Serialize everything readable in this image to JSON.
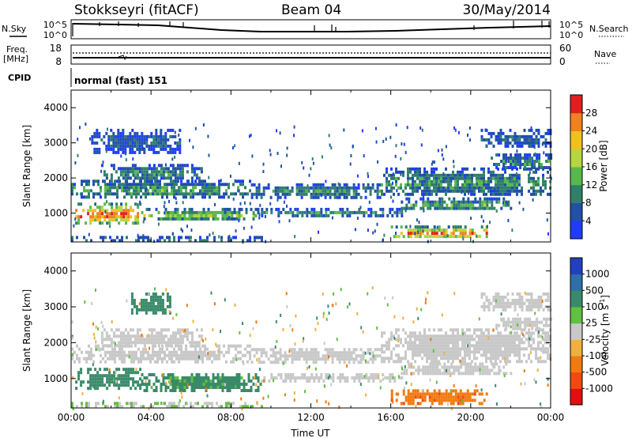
{
  "header": {
    "station": "Stokkseyri (fitACF)",
    "beam": "Beam 04",
    "date": "30/May/2014"
  },
  "top_panels": {
    "nsky_label": "N.Sky",
    "nsky_ticks": [
      "10^5",
      "10^0"
    ],
    "nsearch_label": "N.Search",
    "nsearch_ticks": [
      "10^5",
      "10^0"
    ],
    "freq_label": "Freq.",
    "freq_unit": "[MHz]",
    "freq_ticks": [
      "18",
      "8"
    ],
    "nave_label": "Nave",
    "nave_ticks": [
      "60",
      "0"
    ],
    "cpid_label": "CPID",
    "cpid_value": "normal (fast) 151"
  },
  "chart_data": [
    {
      "type": "heatmap",
      "name": "power",
      "ylabel": "Slant Range [km]",
      "xlabel": "",
      "ylim": [
        180,
        4500
      ],
      "yticks": [
        "1000",
        "2000",
        "3000",
        "4000"
      ],
      "xticks": [
        "00:00",
        "04:00",
        "08:00",
        "12:00",
        "16:00",
        "20:00",
        "00:00"
      ],
      "colorbar": {
        "label": "Power [dB]",
        "ticks": [
          "4",
          "8",
          "12",
          "16",
          "20",
          "24",
          "28"
        ],
        "colors": [
          "#1f3bff",
          "#2050a8",
          "#2f7f6a",
          "#58b84b",
          "#b5d640",
          "#f0c020",
          "#f08020",
          "#e02020"
        ]
      },
      "bands": [
        {
          "t0": 0.0,
          "t1": 9.5,
          "r0": 250,
          "r1": 350,
          "v": 12
        },
        {
          "t0": 0.2,
          "t1": 3.5,
          "r0": 700,
          "r1": 1300,
          "v": 24
        },
        {
          "t0": 3.5,
          "t1": 9.5,
          "r0": 800,
          "r1": 1150,
          "v": 14
        },
        {
          "t0": 0.0,
          "t1": 9.0,
          "r0": 1450,
          "r1": 1950,
          "v": 11
        },
        {
          "t0": 1.5,
          "t1": 6.5,
          "r0": 1900,
          "r1": 2400,
          "v": 9
        },
        {
          "t0": 1.0,
          "t1": 5.5,
          "r0": 2700,
          "r1": 3400,
          "v": 6
        },
        {
          "t0": 9.0,
          "t1": 15.5,
          "r0": 1450,
          "r1": 1850,
          "v": 9
        },
        {
          "t0": 9.5,
          "t1": 16.5,
          "r0": 950,
          "r1": 1150,
          "v": 10
        },
        {
          "t0": 16.0,
          "t1": 20.8,
          "r0": 300,
          "r1": 650,
          "v": 22
        },
        {
          "t0": 16.5,
          "t1": 22.0,
          "r0": 1100,
          "r1": 1450,
          "v": 11
        },
        {
          "t0": 15.5,
          "t1": 24.0,
          "r0": 1500,
          "r1": 2300,
          "v": 10
        },
        {
          "t0": 21.0,
          "t1": 24.0,
          "r0": 2300,
          "r1": 2700,
          "v": 9
        },
        {
          "t0": 20.5,
          "t1": 24.0,
          "r0": 2900,
          "r1": 3400,
          "v": 6
        }
      ]
    },
    {
      "type": "heatmap",
      "name": "velocity",
      "ylabel": "Slant Range [km]",
      "xlabel": "Time UT",
      "ylim": [
        180,
        4500
      ],
      "yticks": [
        "1000",
        "2000",
        "3000",
        "4000"
      ],
      "xticks": [
        "00:00",
        "04:00",
        "08:00",
        "12:00",
        "16:00",
        "20:00",
        "00:00"
      ],
      "colorbar": {
        "label": "Velocity [m s",
        "label_sup": "-1",
        "label_end": "]",
        "ticks": [
          "1000",
          "500",
          "100",
          "25",
          "-25",
          "-100",
          "-500",
          "-1000"
        ],
        "colors": [
          "#2040c0",
          "#2f6fa8",
          "#3a8a6a",
          "#60c040",
          "#c8c8c8",
          "#f0b040",
          "#f07a10",
          "#f04a10",
          "#e01010"
        ]
      },
      "bands": [
        {
          "t0": 0.0,
          "t1": 9.5,
          "r0": 250,
          "r1": 350,
          "v": 25
        },
        {
          "t0": 0.2,
          "t1": 3.5,
          "r0": 700,
          "r1": 1300,
          "v": 300
        },
        {
          "t0": 3.5,
          "t1": 9.5,
          "r0": 700,
          "r1": 1150,
          "v": 150
        },
        {
          "t0": 0.0,
          "t1": 9.0,
          "r0": 1450,
          "r1": 1950,
          "v": 0
        },
        {
          "t0": 1.5,
          "t1": 6.5,
          "r0": 1900,
          "r1": 2400,
          "v": 0
        },
        {
          "t0": 3.0,
          "t1": 5.0,
          "r0": 2800,
          "r1": 3400,
          "v": 200
        },
        {
          "t0": 9.0,
          "t1": 15.5,
          "r0": 1450,
          "r1": 1850,
          "v": 0
        },
        {
          "t0": 9.5,
          "t1": 16.5,
          "r0": 950,
          "r1": 1150,
          "v": 0
        },
        {
          "t0": 16.0,
          "t1": 20.8,
          "r0": 300,
          "r1": 700,
          "v": -400
        },
        {
          "t0": 16.5,
          "t1": 22.0,
          "r0": 1100,
          "r1": 1450,
          "v": 0
        },
        {
          "t0": 15.5,
          "t1": 24.0,
          "r0": 1500,
          "r1": 2400,
          "v": 0
        },
        {
          "t0": 21.0,
          "t1": 24.0,
          "r0": 2400,
          "r1": 2700,
          "v": 0
        },
        {
          "t0": 20.5,
          "t1": 24.0,
          "r0": 2900,
          "r1": 3400,
          "v": 0
        }
      ]
    }
  ]
}
